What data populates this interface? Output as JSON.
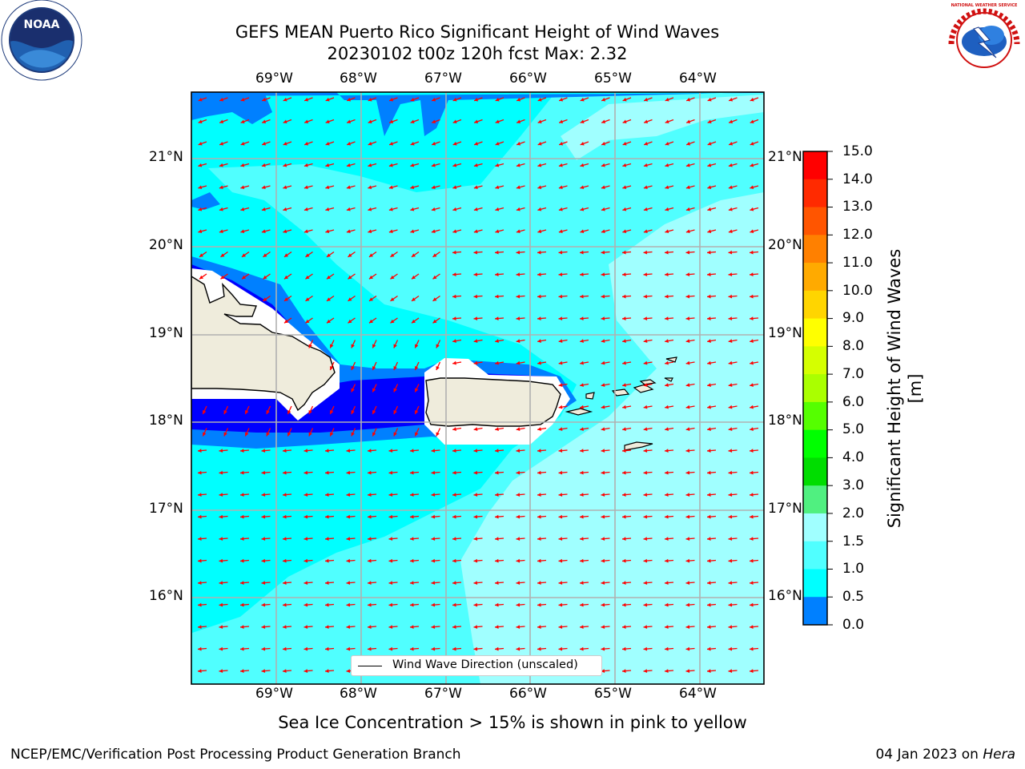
{
  "title": {
    "line1": "GEFS MEAN Puerto Rico Significant Height of Wind Waves",
    "line2": "20230102 t00z 120h fcst   Max: 2.32"
  },
  "map": {
    "lon_ticks": [
      "69°W",
      "68°W",
      "67°W",
      "66°W",
      "65°W",
      "64°W"
    ],
    "lat_ticks": [
      "21°N",
      "20°N",
      "19°N",
      "18°N",
      "17°N",
      "16°N"
    ],
    "legend_label": "Wind Wave Direction (unscaled)",
    "arrow_color": "#ff0000",
    "land_color": "#efecdc",
    "colors": {
      "band_0_05": "#0000ff",
      "band_05_1": "#0080ff",
      "band_1_15": "#00ffff",
      "band_15_2": "#50ffff",
      "band_2_3": "#a0ffff"
    }
  },
  "colorbar": {
    "label": "Significant Height of Wind Waves [m]",
    "ticks": [
      "15.0",
      "14.0",
      "13.0",
      "12.0",
      "11.0",
      "10.0",
      "9.0",
      "8.0",
      "7.0",
      "6.0",
      "5.0",
      "4.0",
      "3.0",
      "2.0",
      "1.5",
      "1.0",
      "0.5",
      "0.0"
    ],
    "colors": [
      "#ff0000",
      "#ff2a00",
      "#ff5500",
      "#ff8000",
      "#ffaa00",
      "#ffd500",
      "#ffff00",
      "#d5ff00",
      "#aaff00",
      "#55ff00",
      "#00ff00",
      "#00dd00",
      "#50f080",
      "#a0ffff",
      "#50ffff",
      "#00ffff",
      "#0080ff",
      "#0000ff"
    ]
  },
  "caption": "Sea Ice Concentration > 15% is shown in pink to yellow",
  "footer": {
    "left": "NCEP/EMC/Verification Post Processing Product Generation Branch",
    "right_prefix": "04 Jan 2023 on ",
    "right_host": "Hera"
  },
  "logos": {
    "noaa": "NOAA",
    "nws": "NATIONAL WEATHER SERVICE"
  }
}
